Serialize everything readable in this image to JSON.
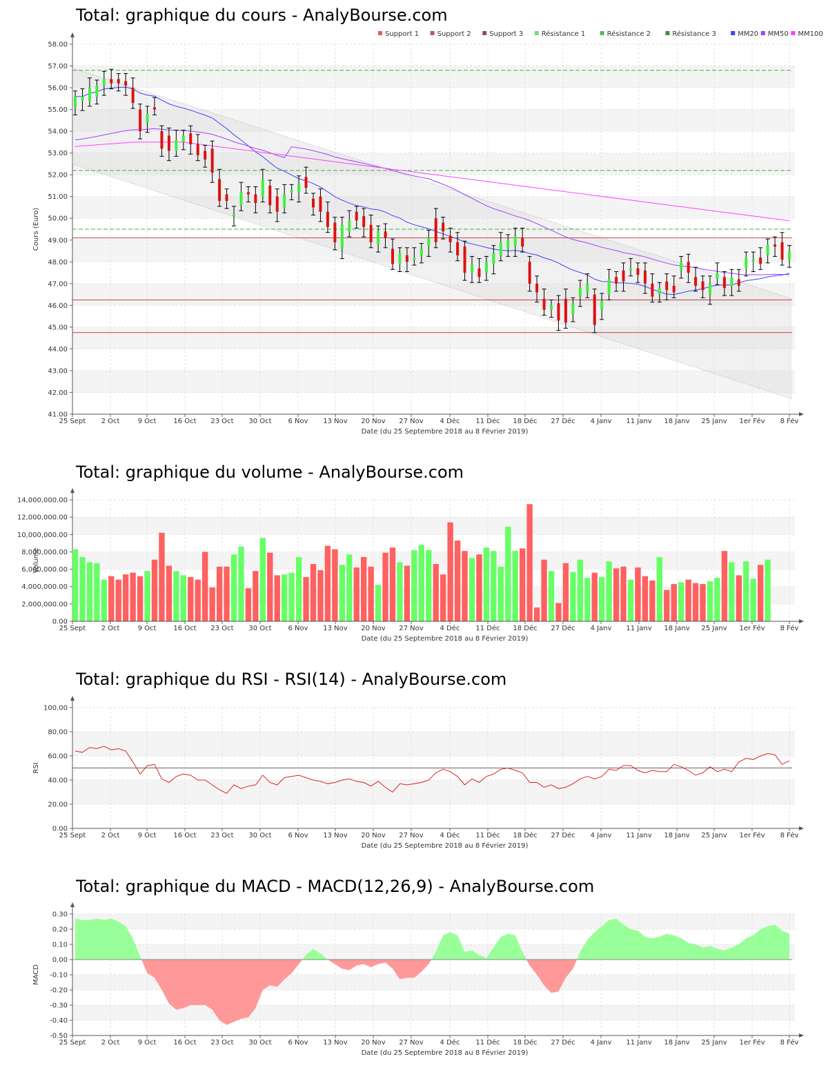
{
  "charts": [
    {
      "id": "price",
      "title": "Total: graphique du cours - AnalyBourse.com",
      "ylabel": "Cours (Euro)"
    },
    {
      "id": "volume",
      "title": "Total: graphique du volume - AnalyBourse.com",
      "ylabel": "Volume"
    },
    {
      "id": "rsi",
      "title": "Total: graphique du RSI - RSI(14) - AnalyBourse.com",
      "ylabel": "RSI"
    },
    {
      "id": "macd",
      "title": "Total: graphique du MACD - MACD(12,26,9) - AnalyBourse.com",
      "ylabel": "MACD"
    }
  ],
  "xlabel": "Date (du 25 Septembre 2018 au 8 Février 2019)",
  "x_ticks": [
    "25 Sept",
    "2 Oct",
    "9 Oct",
    "16 Oct",
    "23 Oct",
    "30 Oct",
    "6 Nov",
    "13 Nov",
    "20 Nov",
    "27 Nov",
    "4 Déc",
    "11 Déc",
    "18 Déc",
    "27 Déc",
    "4 Janv",
    "11 Janv",
    "18 Janv",
    "25 Janv",
    "1er Fév",
    "8 Fév"
  ],
  "legend": [
    {
      "label": "Support 1",
      "color": "#e06060"
    },
    {
      "label": "Support 2",
      "color": "#b06060"
    },
    {
      "label": "Support 3",
      "color": "#905050"
    },
    {
      "label": "Résistance 1",
      "color": "#70e070"
    },
    {
      "label": "Résistance 2",
      "color": "#50c050"
    },
    {
      "label": "Résistance 3",
      "color": "#409040"
    },
    {
      "label": "MM20",
      "color": "#4040ff"
    },
    {
      "label": "MM50",
      "color": "#a040ff"
    },
    {
      "label": "MM100",
      "color": "#ff40ff"
    }
  ],
  "colors": {
    "up": "#44ee44",
    "down": "#dd1111",
    "vol_up": "#66ff66",
    "vol_down": "#ff6060",
    "macd_pos": "#99ff99",
    "macd_neg": "#ff9999",
    "rsi_line": "#dd2222"
  },
  "chart_data": [
    {
      "type": "candlestick",
      "title": "Total: graphique du cours - AnalyBourse.com",
      "ylabel": "Cours (Euro)",
      "ylim": [
        41,
        58
      ],
      "yticks": [
        "41.00",
        "42.00",
        "43.00",
        "44.00",
        "45.00",
        "46.00",
        "47.00",
        "48.00",
        "49.00",
        "50.00",
        "51.00",
        "52.00",
        "53.00",
        "54.00",
        "55.00",
        "56.00",
        "57.00",
        "58.00"
      ],
      "ohlc": [
        [
          55.1,
          55.6
        ],
        [
          55.4,
          55.6
        ],
        [
          55.4,
          56.0
        ],
        [
          55.6,
          56.1
        ],
        [
          56.1,
          56.4
        ],
        [
          56.4,
          56.2
        ],
        [
          56.4,
          56.2
        ],
        [
          56.3,
          56.1
        ],
        [
          56.0,
          55.3
        ],
        [
          55.0,
          54.0
        ],
        [
          54.4,
          54.8
        ],
        [
          55.1,
          55.0
        ],
        [
          54.0,
          53.2
        ],
        [
          53.8,
          53.1
        ],
        [
          53.1,
          53.6
        ],
        [
          53.5,
          53.8
        ],
        [
          53.9,
          53.4
        ],
        [
          53.4,
          52.9
        ],
        [
          53.1,
          52.7
        ],
        [
          53.2,
          52.1
        ],
        [
          51.8,
          50.8
        ],
        [
          51.1,
          50.8
        ],
        [
          50.1,
          50.2
        ],
        [
          50.6,
          51.2
        ],
        [
          51.2,
          51.1
        ],
        [
          51.1,
          50.7
        ],
        [
          51.0,
          51.8
        ],
        [
          51.5,
          50.6
        ],
        [
          51.0,
          50.3
        ],
        [
          50.5,
          51.1
        ],
        [
          51.2,
          51.3
        ],
        [
          51.2,
          51.6
        ],
        [
          51.9,
          51.4
        ],
        [
          50.9,
          50.5
        ],
        [
          51.0,
          50.3
        ],
        [
          50.3,
          49.6
        ],
        [
          49.8,
          48.9
        ],
        [
          48.6,
          49.7
        ],
        [
          49.4,
          49.9
        ],
        [
          50.3,
          49.9
        ],
        [
          50.1,
          49.6
        ],
        [
          49.7,
          48.9
        ],
        [
          48.8,
          49.4
        ],
        [
          49.4,
          49.1
        ],
        [
          48.6,
          47.9
        ],
        [
          47.9,
          48.4
        ],
        [
          48.3,
          48.0
        ],
        [
          48.1,
          48.2
        ],
        [
          48.3,
          48.6
        ],
        [
          48.7,
          49.1
        ],
        [
          50.0,
          48.9
        ],
        [
          49.8,
          49.4
        ],
        [
          49.2,
          48.9
        ],
        [
          48.9,
          48.3
        ],
        [
          48.7,
          47.5
        ],
        [
          47.5,
          47.9
        ],
        [
          47.7,
          47.3
        ],
        [
          47.5,
          48.0
        ],
        [
          47.9,
          48.4
        ],
        [
          48.3,
          48.9
        ],
        [
          48.6,
          49.0
        ],
        [
          48.7,
          49.2
        ],
        [
          49.1,
          48.7
        ],
        [
          48.0,
          47.0
        ],
        [
          47.0,
          46.6
        ],
        [
          46.3,
          45.8
        ],
        [
          45.8,
          46.0
        ],
        [
          46.1,
          45.3
        ],
        [
          46.3,
          45.2
        ],
        [
          45.6,
          46.1
        ],
        [
          46.4,
          46.8
        ],
        [
          46.6,
          47.0
        ],
        [
          46.5,
          45.1
        ],
        [
          45.8,
          46.2
        ],
        [
          46.5,
          47.2
        ],
        [
          47.3,
          47.0
        ],
        [
          47.6,
          47.1
        ],
        [
          47.6,
          47.7
        ],
        [
          47.7,
          47.4
        ],
        [
          47.6,
          47.0
        ],
        [
          47.0,
          46.4
        ],
        [
          46.5,
          46.8
        ],
        [
          47.1,
          46.7
        ],
        [
          46.9,
          46.6
        ],
        [
          47.6,
          48.0
        ],
        [
          48.0,
          47.5
        ],
        [
          47.3,
          46.9
        ],
        [
          47.1,
          46.7
        ],
        [
          46.5,
          47.0
        ],
        [
          47.2,
          47.5
        ],
        [
          47.3,
          46.8
        ],
        [
          46.9,
          47.3
        ],
        [
          47.2,
          46.9
        ],
        [
          47.7,
          48.2
        ],
        [
          48.0,
          48.1
        ],
        [
          48.2,
          47.9
        ],
        [
          48.3,
          48.8
        ],
        [
          48.8,
          48.7
        ],
        [
          48.9,
          48.1
        ],
        [
          48.1,
          48.5
        ]
      ],
      "support": [
        49.1,
        46.25,
        44.75
      ],
      "resistance": [
        49.5,
        52.2,
        56.8
      ],
      "series": [
        {
          "name": "MM20"
        },
        {
          "name": "MM50"
        },
        {
          "name": "MM100"
        }
      ]
    },
    {
      "type": "bar",
      "title": "Total: graphique du volume - AnalyBourse.com",
      "ylabel": "Volume",
      "ylim": [
        0,
        14000000
      ],
      "yticks": [
        "0.00",
        "2,000,000.00",
        "4,000,000.00",
        "6,000,000.00",
        "8,000,000.00",
        "10,000,000.00",
        "12,000,000.00",
        "14,000,000.00"
      ],
      "values": [
        8.3,
        7.4,
        6.8,
        6.7,
        4.8,
        5.2,
        4.8,
        5.4,
        5.6,
        5.2,
        5.8,
        7.1,
        10.2,
        6.4,
        5.8,
        5.3,
        5.1,
        4.8,
        8.0,
        3.9,
        6.3,
        6.3,
        7.7,
        8.6,
        3.8,
        5.8,
        9.6,
        7.9,
        5.3,
        5.4,
        5.6,
        7.4,
        5.1,
        6.6,
        5.9,
        8.7,
        8.3,
        6.5,
        7.7,
        6.2,
        7.4,
        6.3,
        4.2,
        7.9,
        8.5,
        6.8,
        6.4,
        8.2,
        8.8,
        8.2,
        6.6,
        5.4,
        11.4,
        9.3,
        8.1,
        7.3,
        7.7,
        8.5,
        8.1,
        6.3,
        10.9,
        8.1,
        8.4,
        13.5,
        1.6,
        7.1,
        5.8,
        2.1,
        6.7,
        5.7,
        7.1,
        5.0,
        5.6,
        5.1,
        6.9,
        6.1,
        6.3,
        4.8,
        6.2,
        5.2,
        4.7,
        7.4,
        3.6,
        4.3,
        4.5,
        4.8,
        4.4,
        4.3,
        4.6,
        5.0,
        8.1,
        6.8,
        5.3,
        6.9,
        4.9,
        6.5,
        7.1
      ]
    },
    {
      "type": "line",
      "title": "Total: graphique du RSI - RSI(14) - AnalyBourse.com",
      "ylabel": "RSI",
      "ylim": [
        0,
        100
      ],
      "yticks": [
        "0.00",
        "20.00",
        "40.00",
        "60.00",
        "80.00",
        "100.00"
      ],
      "reference": 50,
      "values": [
        64,
        63,
        67,
        66,
        68,
        65,
        66,
        64,
        55,
        45,
        52,
        53,
        41,
        38,
        43,
        45,
        44,
        40,
        40,
        36,
        32,
        29,
        36,
        33,
        35,
        36,
        44,
        38,
        36,
        42,
        43,
        44,
        42,
        40,
        39,
        37,
        38,
        40,
        41,
        39,
        38,
        35,
        39,
        34,
        30,
        37,
        36,
        37,
        38,
        40,
        46,
        49,
        47,
        43,
        36,
        41,
        38,
        43,
        45,
        49,
        50,
        48,
        46,
        38,
        38,
        34,
        36,
        33,
        34,
        37,
        41,
        43,
        41,
        43,
        49,
        48,
        52,
        52,
        48,
        46,
        48,
        47,
        47,
        53,
        51,
        48,
        44,
        46,
        51,
        47,
        49,
        47,
        55,
        58,
        57,
        60,
        62,
        61,
        53,
        56
      ]
    },
    {
      "type": "area",
      "title": "Total: graphique du MACD - MACD(12,26,9) - AnalyBourse.com",
      "ylabel": "MACD",
      "ylim": [
        -0.5,
        0.3
      ],
      "yticks": [
        "-0.50",
        "-0.40",
        "-0.30",
        "-0.20",
        "-0.10",
        "0.00",
        "0.10",
        "0.20",
        "0.30"
      ],
      "values": [
        0.27,
        0.26,
        0.26,
        0.27,
        0.26,
        0.27,
        0.25,
        0.22,
        0.14,
        0.02,
        -0.09,
        -0.12,
        -0.2,
        -0.29,
        -0.33,
        -0.32,
        -0.3,
        -0.3,
        -0.3,
        -0.33,
        -0.4,
        -0.43,
        -0.41,
        -0.39,
        -0.38,
        -0.32,
        -0.2,
        -0.17,
        -0.18,
        -0.13,
        -0.09,
        -0.03,
        0.03,
        0.07,
        0.04,
        0.0,
        -0.03,
        -0.06,
        -0.07,
        -0.04,
        -0.03,
        -0.05,
        -0.03,
        -0.02,
        -0.06,
        -0.13,
        -0.12,
        -0.12,
        -0.08,
        -0.03,
        0.05,
        0.16,
        0.18,
        0.16,
        0.05,
        0.06,
        0.03,
        0.01,
        0.08,
        0.15,
        0.17,
        0.16,
        0.05,
        -0.04,
        -0.1,
        -0.17,
        -0.22,
        -0.21,
        -0.12,
        -0.06,
        0.05,
        0.13,
        0.18,
        0.22,
        0.26,
        0.27,
        0.23,
        0.2,
        0.19,
        0.15,
        0.14,
        0.15,
        0.17,
        0.16,
        0.14,
        0.11,
        0.1,
        0.08,
        0.09,
        0.07,
        0.06,
        0.08,
        0.1,
        0.14,
        0.16,
        0.2,
        0.22,
        0.23,
        0.19,
        0.17
      ]
    }
  ]
}
